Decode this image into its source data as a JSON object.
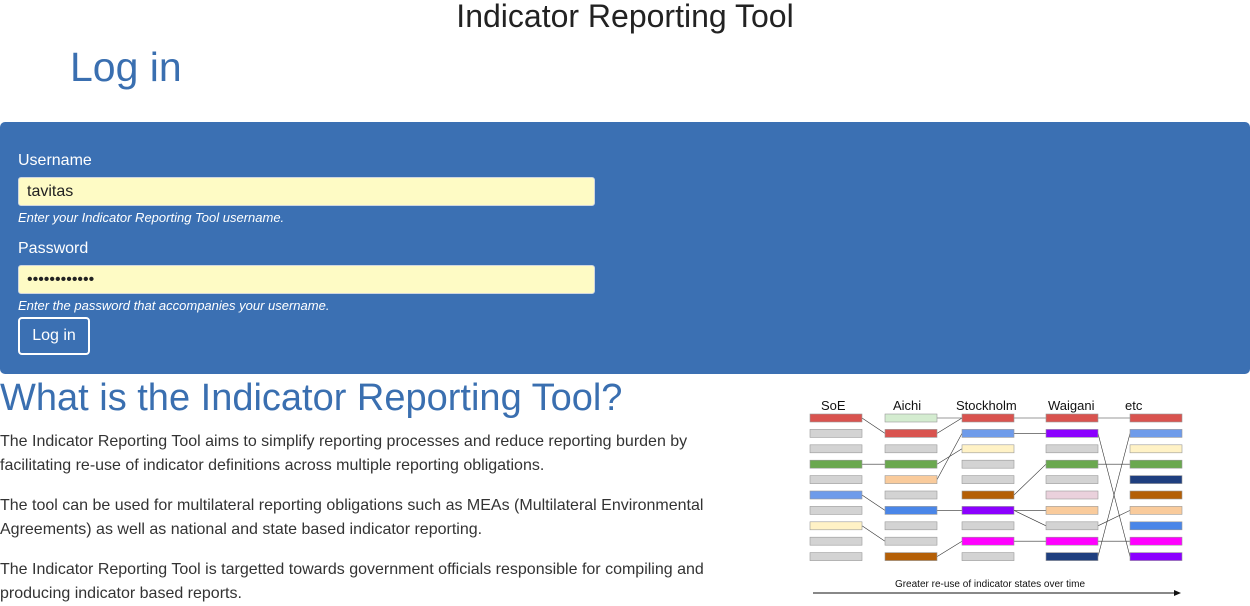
{
  "app": {
    "title": "Indicator Reporting Tool"
  },
  "page": {
    "title": "Log in"
  },
  "login_form": {
    "username": {
      "label": "Username",
      "value": "tavitas",
      "help": "Enter your Indicator Reporting Tool username."
    },
    "password": {
      "label": "Password",
      "value": "••••••••••••",
      "help": "Enter the password that accompanies your username."
    },
    "submit_label": "Log in",
    "panel_color": "#3b70b3",
    "input_background": "#fefbc5"
  },
  "info": {
    "heading": "What is the Indicator Reporting Tool?",
    "paragraphs": [
      "The Indicator Reporting Tool aims to simplify reporting processes and reduce reporting burden by facilitating re-use of indicator definitions across multiple reporting obligations.",
      "The tool can be used for multilateral reporting obligations such as MEAs (Multilateral Environmental Agreements) as well as national and state based indicator reporting.",
      "The Indicator Reporting Tool is targetted towards government officials responsible for compiling and producing indicator based reports."
    ]
  },
  "diagram": {
    "columns": [
      "SoE",
      "Aichi",
      "Stockholm",
      "Waigani",
      "etc"
    ],
    "caption": "Greater re-use of indicator states over time",
    "rows": [
      [
        "#d9534f",
        "#d4ecd0",
        "#d9534f",
        "#d9534f",
        "#d9534f"
      ],
      [
        "#d3d3d3",
        "#d9534f",
        "#6e9bea",
        "#8b00ff",
        "#6e9bea"
      ],
      [
        "#d3d3d3",
        "#d3d3d3",
        "#fff2c6",
        "#d3d3d3",
        "#fff2c6"
      ],
      [
        "#6aa84f",
        "#6aa84f",
        "#d3d3d3",
        "#6aa84f",
        "#6aa84f"
      ],
      [
        "#d3d3d3",
        "#f9cb9c",
        "#d3d3d3",
        "#d3d3d3",
        "#1f3f7f"
      ],
      [
        "#6e9bea",
        "#d3d3d3",
        "#b45f06",
        "#ead1dc",
        "#b45f06"
      ],
      [
        "#d3d3d3",
        "#4a86e8",
        "#8b00ff",
        "#f9cb9c",
        "#f9cb9c"
      ],
      [
        "#fff2c6",
        "#d3d3d3",
        "#d3d3d3",
        "#d3d3d3",
        "#4a86e8"
      ],
      [
        "#d3d3d3",
        "#d3d3d3",
        "#ff00ff",
        "#ff00ff",
        "#ff00ff"
      ],
      [
        "#d3d3d3",
        "#b45f06",
        "#d3d3d3",
        "#1f3f7f",
        "#8b00ff"
      ]
    ],
    "links": [
      [
        0,
        0,
        1
      ],
      [
        0,
        5,
        6
      ],
      [
        0,
        7,
        8
      ],
      [
        0,
        3,
        3
      ],
      [
        1,
        1,
        0
      ],
      [
        1,
        3,
        2
      ],
      [
        1,
        4,
        1
      ],
      [
        1,
        6,
        6
      ],
      [
        1,
        9,
        8
      ],
      [
        1,
        0,
        0
      ],
      [
        2,
        0,
        0
      ],
      [
        2,
        1,
        1
      ],
      [
        2,
        5,
        3
      ],
      [
        2,
        6,
        7
      ],
      [
        2,
        8,
        8
      ],
      [
        2,
        6,
        6
      ],
      [
        3,
        0,
        0
      ],
      [
        3,
        1,
        9
      ],
      [
        3,
        3,
        3
      ],
      [
        3,
        7,
        6
      ],
      [
        3,
        8,
        8
      ],
      [
        3,
        9,
        1
      ]
    ]
  }
}
